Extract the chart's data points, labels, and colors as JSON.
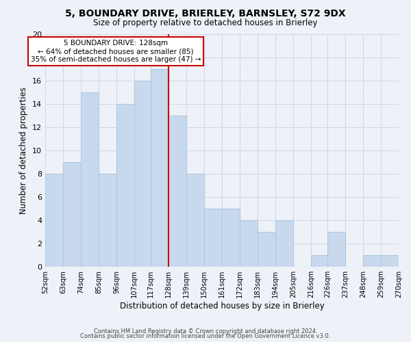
{
  "title": "5, BOUNDARY DRIVE, BRIERLEY, BARNSLEY, S72 9DX",
  "subtitle": "Size of property relative to detached houses in Brierley",
  "xlabel": "Distribution of detached houses by size in Brierley",
  "ylabel": "Number of detached properties",
  "footer_line1": "Contains HM Land Registry data © Crown copyright and database right 2024.",
  "footer_line2": "Contains public sector information licensed under the Open Government Licence v3.0.",
  "bins": [
    52,
    63,
    74,
    85,
    96,
    107,
    117,
    128,
    139,
    150,
    161,
    172,
    183,
    194,
    205,
    216,
    226,
    237,
    248,
    259,
    270
  ],
  "counts": [
    8,
    9,
    15,
    8,
    14,
    16,
    17,
    13,
    8,
    5,
    5,
    4,
    3,
    4,
    0,
    1,
    3,
    0,
    1,
    1
  ],
  "tick_labels": [
    "52sqm",
    "63sqm",
    "74sqm",
    "85sqm",
    "96sqm",
    "107sqm",
    "117sqm",
    "128sqm",
    "139sqm",
    "150sqm",
    "161sqm",
    "172sqm",
    "183sqm",
    "194sqm",
    "205sqm",
    "216sqm",
    "226sqm",
    "237sqm",
    "248sqm",
    "259sqm",
    "270sqm"
  ],
  "property_size": 128,
  "property_size_label": "5 BOUNDARY DRIVE: 128sqm",
  "annotation_line1": "← 64% of detached houses are smaller (85)",
  "annotation_line2": "35% of semi-detached houses are larger (47) →",
  "bar_color": "#c8d9ed",
  "bar_edge_color": "#afc8e0",
  "vline_color": "#cc0000",
  "annotation_box_edge_color": "#cc0000",
  "annotation_box_fill": "#ffffff",
  "grid_color": "#d0d8e8",
  "ylim": [
    0,
    20
  ],
  "yticks": [
    0,
    2,
    4,
    6,
    8,
    10,
    12,
    14,
    16,
    18,
    20
  ],
  "bg_color": "#eef2f8"
}
